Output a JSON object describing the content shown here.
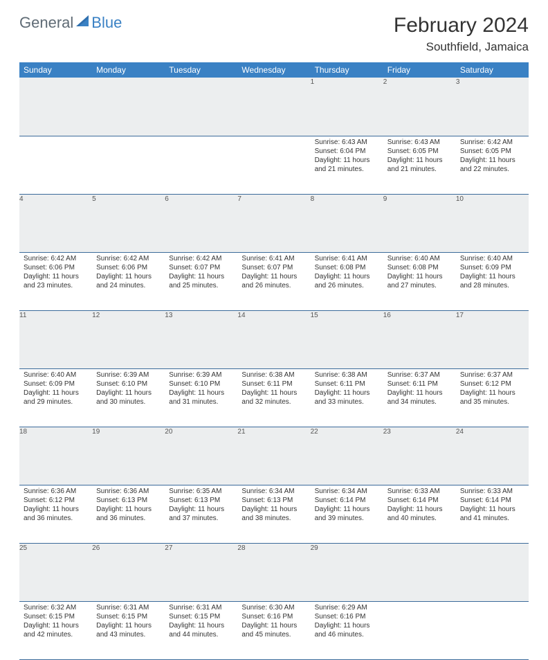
{
  "logo": {
    "text1": "General",
    "text2": "Blue"
  },
  "title": "February 2024",
  "location": "Southfield, Jamaica",
  "colors": {
    "header_bg": "#3a81c4",
    "header_text": "#ffffff",
    "daynum_bg": "#eceeef",
    "border": "#3a6a9a",
    "logo_gray": "#5f6b75",
    "logo_blue": "#3a81c4"
  },
  "typography": {
    "title_fontsize": 30,
    "location_fontsize": 17,
    "header_fontsize": 12,
    "body_fontsize": 10
  },
  "weekdays": [
    "Sunday",
    "Monday",
    "Tuesday",
    "Wednesday",
    "Thursday",
    "Friday",
    "Saturday"
  ],
  "weeks": [
    [
      null,
      null,
      null,
      null,
      {
        "n": "1",
        "sr": "Sunrise: 6:43 AM",
        "ss": "Sunset: 6:04 PM",
        "d1": "Daylight: 11 hours",
        "d2": "and 21 minutes."
      },
      {
        "n": "2",
        "sr": "Sunrise: 6:43 AM",
        "ss": "Sunset: 6:05 PM",
        "d1": "Daylight: 11 hours",
        "d2": "and 21 minutes."
      },
      {
        "n": "3",
        "sr": "Sunrise: 6:42 AM",
        "ss": "Sunset: 6:05 PM",
        "d1": "Daylight: 11 hours",
        "d2": "and 22 minutes."
      }
    ],
    [
      {
        "n": "4",
        "sr": "Sunrise: 6:42 AM",
        "ss": "Sunset: 6:06 PM",
        "d1": "Daylight: 11 hours",
        "d2": "and 23 minutes."
      },
      {
        "n": "5",
        "sr": "Sunrise: 6:42 AM",
        "ss": "Sunset: 6:06 PM",
        "d1": "Daylight: 11 hours",
        "d2": "and 24 minutes."
      },
      {
        "n": "6",
        "sr": "Sunrise: 6:42 AM",
        "ss": "Sunset: 6:07 PM",
        "d1": "Daylight: 11 hours",
        "d2": "and 25 minutes."
      },
      {
        "n": "7",
        "sr": "Sunrise: 6:41 AM",
        "ss": "Sunset: 6:07 PM",
        "d1": "Daylight: 11 hours",
        "d2": "and 26 minutes."
      },
      {
        "n": "8",
        "sr": "Sunrise: 6:41 AM",
        "ss": "Sunset: 6:08 PM",
        "d1": "Daylight: 11 hours",
        "d2": "and 26 minutes."
      },
      {
        "n": "9",
        "sr": "Sunrise: 6:40 AM",
        "ss": "Sunset: 6:08 PM",
        "d1": "Daylight: 11 hours",
        "d2": "and 27 minutes."
      },
      {
        "n": "10",
        "sr": "Sunrise: 6:40 AM",
        "ss": "Sunset: 6:09 PM",
        "d1": "Daylight: 11 hours",
        "d2": "and 28 minutes."
      }
    ],
    [
      {
        "n": "11",
        "sr": "Sunrise: 6:40 AM",
        "ss": "Sunset: 6:09 PM",
        "d1": "Daylight: 11 hours",
        "d2": "and 29 minutes."
      },
      {
        "n": "12",
        "sr": "Sunrise: 6:39 AM",
        "ss": "Sunset: 6:10 PM",
        "d1": "Daylight: 11 hours",
        "d2": "and 30 minutes."
      },
      {
        "n": "13",
        "sr": "Sunrise: 6:39 AM",
        "ss": "Sunset: 6:10 PM",
        "d1": "Daylight: 11 hours",
        "d2": "and 31 minutes."
      },
      {
        "n": "14",
        "sr": "Sunrise: 6:38 AM",
        "ss": "Sunset: 6:11 PM",
        "d1": "Daylight: 11 hours",
        "d2": "and 32 minutes."
      },
      {
        "n": "15",
        "sr": "Sunrise: 6:38 AM",
        "ss": "Sunset: 6:11 PM",
        "d1": "Daylight: 11 hours",
        "d2": "and 33 minutes."
      },
      {
        "n": "16",
        "sr": "Sunrise: 6:37 AM",
        "ss": "Sunset: 6:11 PM",
        "d1": "Daylight: 11 hours",
        "d2": "and 34 minutes."
      },
      {
        "n": "17",
        "sr": "Sunrise: 6:37 AM",
        "ss": "Sunset: 6:12 PM",
        "d1": "Daylight: 11 hours",
        "d2": "and 35 minutes."
      }
    ],
    [
      {
        "n": "18",
        "sr": "Sunrise: 6:36 AM",
        "ss": "Sunset: 6:12 PM",
        "d1": "Daylight: 11 hours",
        "d2": "and 36 minutes."
      },
      {
        "n": "19",
        "sr": "Sunrise: 6:36 AM",
        "ss": "Sunset: 6:13 PM",
        "d1": "Daylight: 11 hours",
        "d2": "and 36 minutes."
      },
      {
        "n": "20",
        "sr": "Sunrise: 6:35 AM",
        "ss": "Sunset: 6:13 PM",
        "d1": "Daylight: 11 hours",
        "d2": "and 37 minutes."
      },
      {
        "n": "21",
        "sr": "Sunrise: 6:34 AM",
        "ss": "Sunset: 6:13 PM",
        "d1": "Daylight: 11 hours",
        "d2": "and 38 minutes."
      },
      {
        "n": "22",
        "sr": "Sunrise: 6:34 AM",
        "ss": "Sunset: 6:14 PM",
        "d1": "Daylight: 11 hours",
        "d2": "and 39 minutes."
      },
      {
        "n": "23",
        "sr": "Sunrise: 6:33 AM",
        "ss": "Sunset: 6:14 PM",
        "d1": "Daylight: 11 hours",
        "d2": "and 40 minutes."
      },
      {
        "n": "24",
        "sr": "Sunrise: 6:33 AM",
        "ss": "Sunset: 6:14 PM",
        "d1": "Daylight: 11 hours",
        "d2": "and 41 minutes."
      }
    ],
    [
      {
        "n": "25",
        "sr": "Sunrise: 6:32 AM",
        "ss": "Sunset: 6:15 PM",
        "d1": "Daylight: 11 hours",
        "d2": "and 42 minutes."
      },
      {
        "n": "26",
        "sr": "Sunrise: 6:31 AM",
        "ss": "Sunset: 6:15 PM",
        "d1": "Daylight: 11 hours",
        "d2": "and 43 minutes."
      },
      {
        "n": "27",
        "sr": "Sunrise: 6:31 AM",
        "ss": "Sunset: 6:15 PM",
        "d1": "Daylight: 11 hours",
        "d2": "and 44 minutes."
      },
      {
        "n": "28",
        "sr": "Sunrise: 6:30 AM",
        "ss": "Sunset: 6:16 PM",
        "d1": "Daylight: 11 hours",
        "d2": "and 45 minutes."
      },
      {
        "n": "29",
        "sr": "Sunrise: 6:29 AM",
        "ss": "Sunset: 6:16 PM",
        "d1": "Daylight: 11 hours",
        "d2": "and 46 minutes."
      },
      null,
      null
    ]
  ]
}
